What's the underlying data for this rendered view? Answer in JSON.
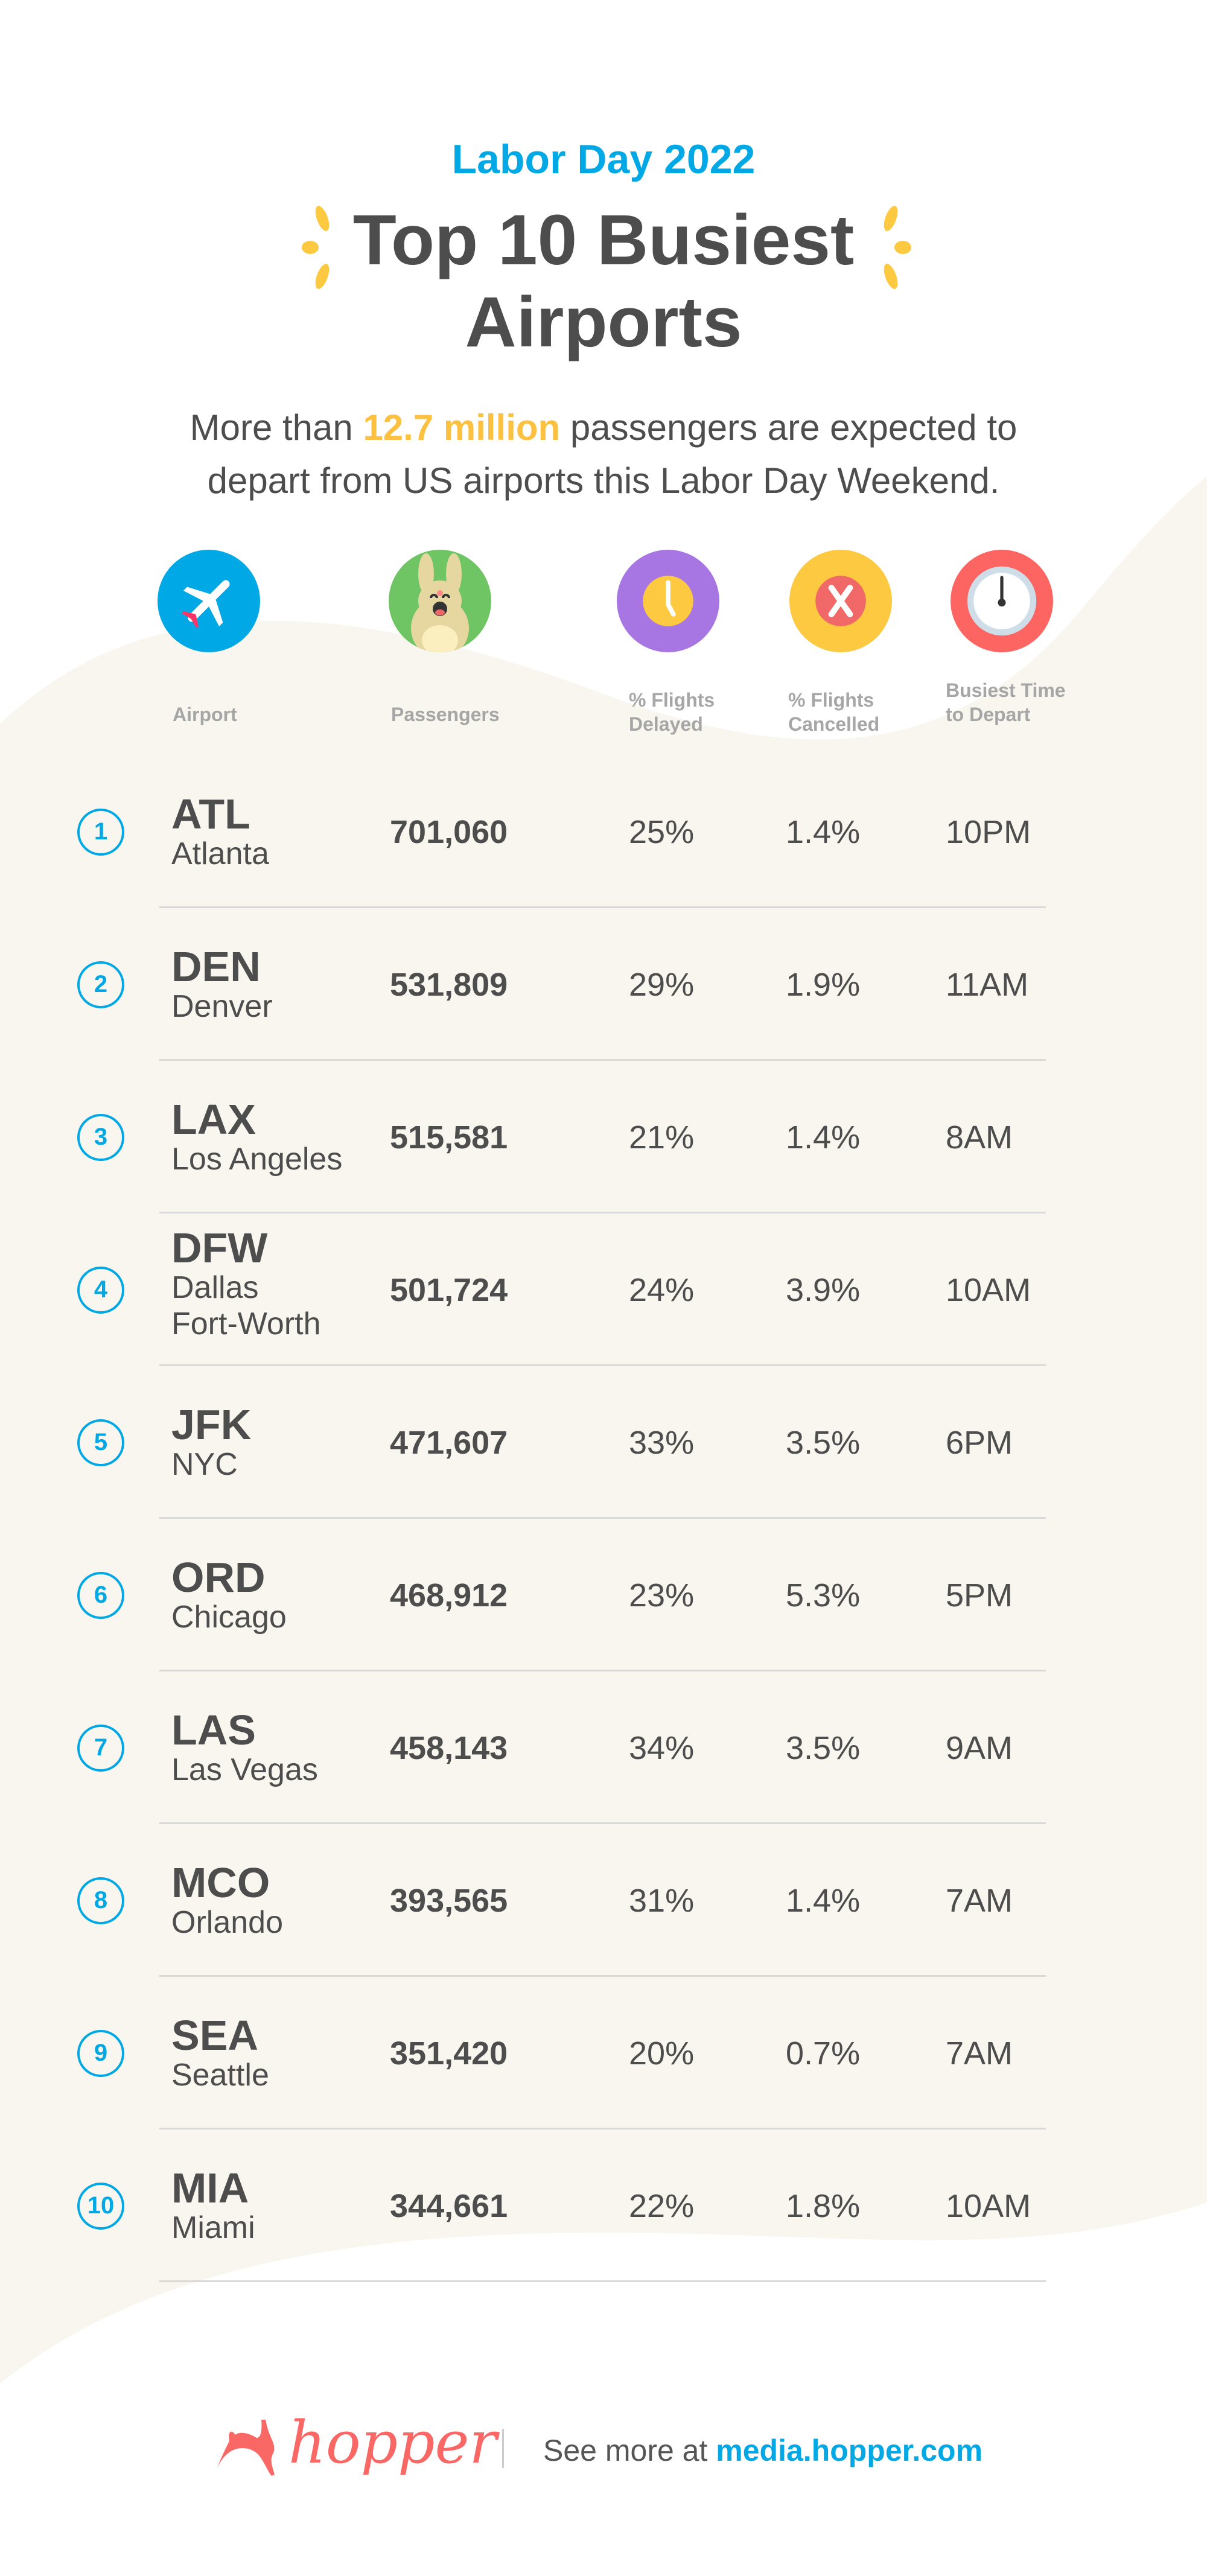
{
  "header": {
    "kicker": "Labor Day 2022",
    "title_line1": "Top 10 Busiest",
    "title_line2": "Airports",
    "subtitle_pre": "More than ",
    "subtitle_highlight": "12.7 million",
    "subtitle_post": " passengers are expected to",
    "subtitle_line2": "depart from US airports this Labor Day Weekend."
  },
  "columns": [
    {
      "label": "Airport",
      "icon": "airplane-icon",
      "color": "#00a9e6"
    },
    {
      "label": "Passengers",
      "icon": "bunny-mascot-icon",
      "color": "#6fc563"
    },
    {
      "label": "% Flights Delayed",
      "icon": "clock-delay-icon",
      "color": "#a776e3"
    },
    {
      "label": "% Flights Cancelled",
      "icon": "cancel-x-icon",
      "color": "#fcc940"
    },
    {
      "label": "Busiest Time to Depart",
      "icon": "clock-icon",
      "color": "#fd6563"
    }
  ],
  "colheads": {
    "airport": "Airport",
    "passengers": "Passengers",
    "delayed_1": "% Flights",
    "delayed_2": "Delayed",
    "cancelled_1": "% Flights",
    "cancelled_2": "Cancelled",
    "time_1": "Busiest Time",
    "time_2": "to Depart"
  },
  "rows": [
    {
      "rank": "1",
      "code": "ATL",
      "city": "Atlanta",
      "city2": "",
      "passengers": "701,060",
      "delayed": "25%",
      "cancelled": "1.4%",
      "time": "10PM"
    },
    {
      "rank": "2",
      "code": "DEN",
      "city": "Denver",
      "city2": "",
      "passengers": "531,809",
      "delayed": "29%",
      "cancelled": "1.9%",
      "time": "11AM"
    },
    {
      "rank": "3",
      "code": "LAX",
      "city": "Los Angeles",
      "city2": "",
      "passengers": "515,581",
      "delayed": "21%",
      "cancelled": "1.4%",
      "time": "8AM"
    },
    {
      "rank": "4",
      "code": "DFW",
      "city": "Dallas",
      "city2": "Fort-Worth",
      "passengers": "501,724",
      "delayed": "24%",
      "cancelled": "3.9%",
      "time": "10AM"
    },
    {
      "rank": "5",
      "code": "JFK",
      "city": "NYC",
      "city2": "",
      "passengers": "471,607",
      "delayed": "33%",
      "cancelled": "3.5%",
      "time": "6PM"
    },
    {
      "rank": "6",
      "code": "ORD",
      "city": "Chicago",
      "city2": "",
      "passengers": "468,912",
      "delayed": "23%",
      "cancelled": "5.3%",
      "time": "5PM"
    },
    {
      "rank": "7",
      "code": "LAS",
      "city": "Las Vegas",
      "city2": "",
      "passengers": "458,143",
      "delayed": "34%",
      "cancelled": "3.5%",
      "time": "9AM"
    },
    {
      "rank": "8",
      "code": "MCO",
      "city": "Orlando",
      "city2": "",
      "passengers": "393,565",
      "delayed": "31%",
      "cancelled": "1.4%",
      "time": "7AM"
    },
    {
      "rank": "9",
      "code": "SEA",
      "city": "Seattle",
      "city2": "",
      "passengers": "351,420",
      "delayed": "20%",
      "cancelled": "0.7%",
      "time": "7AM"
    },
    {
      "rank": "10",
      "code": "MIA",
      "city": "Miami",
      "city2": "",
      "passengers": "344,661",
      "delayed": "22%",
      "cancelled": "1.8%",
      "time": "10AM"
    }
  ],
  "footer": {
    "logo_text": "hopper",
    "see_more": "See more at ",
    "link": "media.hopper.com"
  },
  "colors": {
    "accent": "#00a9e6",
    "highlight": "#fcc140",
    "brand": "#fa6866",
    "text": "#4d4d4d",
    "background": "#f8f6ee"
  }
}
